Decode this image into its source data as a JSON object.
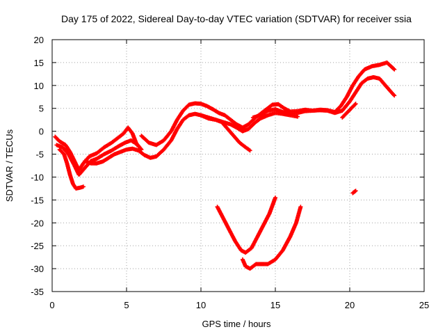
{
  "chart_data": {
    "type": "scatter",
    "title": "Day 175 of 2022, Sidereal Day-to-day VTEC variation (SDTVAR) for receiver ssia",
    "xlabel": "GPS time / hours",
    "ylabel": "SDTVAR / TECUs",
    "xlim": [
      0,
      25
    ],
    "ylim": [
      -35,
      20
    ],
    "x_ticks": [
      "0",
      "5",
      "10",
      "15",
      "20",
      "25"
    ],
    "y_ticks": [
      "-35",
      "-30",
      "-25",
      "-20",
      "-15",
      "-10",
      "-5",
      "0",
      "5",
      "10",
      "15",
      "20"
    ],
    "grid": true,
    "legend": "none",
    "point_color": "#ff0000",
    "series": [
      {
        "points": [
          [
            0.2,
            -1.2
          ],
          [
            0.5,
            -2.2
          ],
          [
            0.9,
            -3.0
          ],
          [
            1.2,
            -4.5
          ],
          [
            1.5,
            -6.5
          ],
          [
            1.8,
            -8.5
          ],
          [
            2.1,
            -7.0
          ],
          [
            2.5,
            -5.5
          ],
          [
            3.0,
            -4.8
          ],
          [
            3.5,
            -3.5
          ],
          [
            4.0,
            -2.5
          ],
          [
            4.4,
            -1.5
          ],
          [
            4.8,
            -0.5
          ],
          [
            5.1,
            0.8
          ],
          [
            5.4,
            -0.5
          ],
          [
            5.7,
            -3.0
          ]
        ]
      },
      {
        "points": [
          [
            0.3,
            -3.0
          ],
          [
            0.7,
            -3.5
          ],
          [
            1.1,
            -5.0
          ],
          [
            1.5,
            -7.5
          ],
          [
            1.8,
            -9.5
          ],
          [
            2.2,
            -8.0
          ],
          [
            2.6,
            -6.5
          ],
          [
            3.0,
            -6.0
          ],
          [
            3.5,
            -5.0
          ],
          [
            4.0,
            -4.2
          ],
          [
            4.5,
            -3.2
          ],
          [
            4.9,
            -2.5
          ],
          [
            5.3,
            -2.0
          ],
          [
            5.7,
            -2.8
          ],
          [
            6.0,
            -4.0
          ]
        ]
      },
      {
        "points": [
          [
            0.5,
            -4.0
          ],
          [
            0.8,
            -5.0
          ],
          [
            1.0,
            -7.0
          ],
          [
            1.2,
            -9.5
          ],
          [
            1.4,
            -11.5
          ],
          [
            1.6,
            -12.5
          ],
          [
            1.9,
            -12.3
          ],
          [
            2.1,
            -12.1
          ]
        ]
      },
      {
        "points": [
          [
            2.2,
            -6.5
          ],
          [
            2.6,
            -7.0
          ],
          [
            3.0,
            -7.0
          ],
          [
            3.4,
            -6.6
          ],
          [
            3.8,
            -5.8
          ],
          [
            4.2,
            -5.0
          ],
          [
            4.6,
            -4.5
          ],
          [
            5.0,
            -4.0
          ],
          [
            5.4,
            -3.8
          ],
          [
            5.8,
            -4.2
          ],
          [
            6.2,
            -5.2
          ],
          [
            6.6,
            -5.8
          ],
          [
            7.0,
            -5.5
          ],
          [
            7.5,
            -4.0
          ],
          [
            8.0,
            -2.0
          ],
          [
            8.4,
            0.5
          ],
          [
            8.8,
            2.5
          ],
          [
            9.2,
            3.5
          ],
          [
            9.6,
            3.8
          ],
          [
            10.0,
            3.5
          ],
          [
            10.5,
            3.0
          ],
          [
            11.0,
            2.5
          ],
          [
            11.5,
            2.0
          ],
          [
            12.0,
            1.5
          ],
          [
            12.4,
            0.8
          ],
          [
            12.8,
            0.0
          ],
          [
            13.2,
            0.5
          ],
          [
            13.6,
            1.8
          ],
          [
            14.0,
            2.8
          ],
          [
            14.5,
            3.5
          ],
          [
            15.0,
            4.0
          ],
          [
            15.5,
            3.8
          ],
          [
            16.0,
            3.5
          ],
          [
            16.5,
            3.2
          ]
        ]
      },
      {
        "points": [
          [
            6.0,
            -1.0
          ],
          [
            6.5,
            -2.5
          ],
          [
            7.0,
            -3.0
          ],
          [
            7.5,
            -2.0
          ],
          [
            8.0,
            0.0
          ],
          [
            8.4,
            2.5
          ],
          [
            8.8,
            4.5
          ],
          [
            9.2,
            5.8
          ],
          [
            9.6,
            6.1
          ],
          [
            10.0,
            6.0
          ],
          [
            10.4,
            5.5
          ],
          [
            10.8,
            4.8
          ],
          [
            11.2,
            4.0
          ],
          [
            11.6,
            3.5
          ],
          [
            12.0,
            2.5
          ],
          [
            12.4,
            1.5
          ],
          [
            12.8,
            0.8
          ],
          [
            13.2,
            1.5
          ],
          [
            13.6,
            2.8
          ],
          [
            14.0,
            3.8
          ],
          [
            14.4,
            4.8
          ],
          [
            14.8,
            5.8
          ],
          [
            15.2,
            5.9
          ],
          [
            15.6,
            5.0
          ],
          [
            16.0,
            4.3
          ],
          [
            16.5,
            4.4
          ],
          [
            17.0,
            4.7
          ],
          [
            17.5,
            4.5
          ],
          [
            18.0,
            4.7
          ],
          [
            18.5,
            4.6
          ],
          [
            19.0,
            4.2
          ],
          [
            19.4,
            5.5
          ],
          [
            19.8,
            7.5
          ],
          [
            20.2,
            10.0
          ],
          [
            20.6,
            12.0
          ],
          [
            21.0,
            13.5
          ],
          [
            21.5,
            14.2
          ],
          [
            22.0,
            14.5
          ],
          [
            22.5,
            15.0
          ],
          [
            23.0,
            13.5
          ]
        ]
      },
      {
        "points": [
          [
            10.0,
            3.5
          ],
          [
            10.5,
            2.8
          ],
          [
            11.0,
            2.5
          ],
          [
            11.4,
            2.0
          ],
          [
            11.8,
            0.5
          ],
          [
            12.2,
            -1.0
          ],
          [
            12.6,
            -2.5
          ],
          [
            13.0,
            -3.5
          ],
          [
            13.3,
            -4.2
          ]
        ]
      },
      {
        "points": [
          [
            13.5,
            3.0
          ],
          [
            14.0,
            3.5
          ],
          [
            14.5,
            4.5
          ],
          [
            15.0,
            4.8
          ],
          [
            15.5,
            4.2
          ],
          [
            16.0,
            3.8
          ],
          [
            16.5,
            4.0
          ],
          [
            17.0,
            4.4
          ],
          [
            17.5,
            4.5
          ],
          [
            18.0,
            4.6
          ],
          [
            18.5,
            4.5
          ],
          [
            19.0,
            4.0
          ],
          [
            19.5,
            4.5
          ],
          [
            20.0,
            6.5
          ],
          [
            20.4,
            8.5
          ],
          [
            20.8,
            10.5
          ],
          [
            21.2,
            11.5
          ],
          [
            21.6,
            11.8
          ],
          [
            22.0,
            11.5
          ],
          [
            22.4,
            10.0
          ],
          [
            22.8,
            8.5
          ],
          [
            23.0,
            7.8
          ]
        ]
      },
      {
        "points": [
          [
            19.5,
            3.0
          ],
          [
            19.8,
            4.0
          ],
          [
            20.1,
            5.0
          ],
          [
            20.4,
            6.0
          ]
        ]
      },
      {
        "points": [
          [
            20.2,
            -13.5
          ],
          [
            20.4,
            -13.0
          ]
        ]
      },
      {
        "points": [
          [
            11.1,
            -16.5
          ],
          [
            11.5,
            -19.0
          ],
          [
            11.9,
            -21.5
          ],
          [
            12.3,
            -24.0
          ],
          [
            12.7,
            -26.0
          ],
          [
            13.0,
            -26.5
          ],
          [
            13.4,
            -25.5
          ],
          [
            13.8,
            -23.0
          ],
          [
            14.2,
            -20.5
          ],
          [
            14.6,
            -18.0
          ],
          [
            15.0,
            -14.5
          ]
        ]
      },
      {
        "points": [
          [
            12.8,
            -28.0
          ],
          [
            13.0,
            -29.5
          ],
          [
            13.3,
            -30.0
          ],
          [
            13.7,
            -29.0
          ],
          [
            14.1,
            -29.0
          ],
          [
            14.5,
            -29.0
          ],
          [
            15.0,
            -28.0
          ],
          [
            15.5,
            -26.0
          ],
          [
            16.0,
            -23.0
          ],
          [
            16.4,
            -20.0
          ],
          [
            16.7,
            -16.5
          ]
        ]
      }
    ]
  }
}
